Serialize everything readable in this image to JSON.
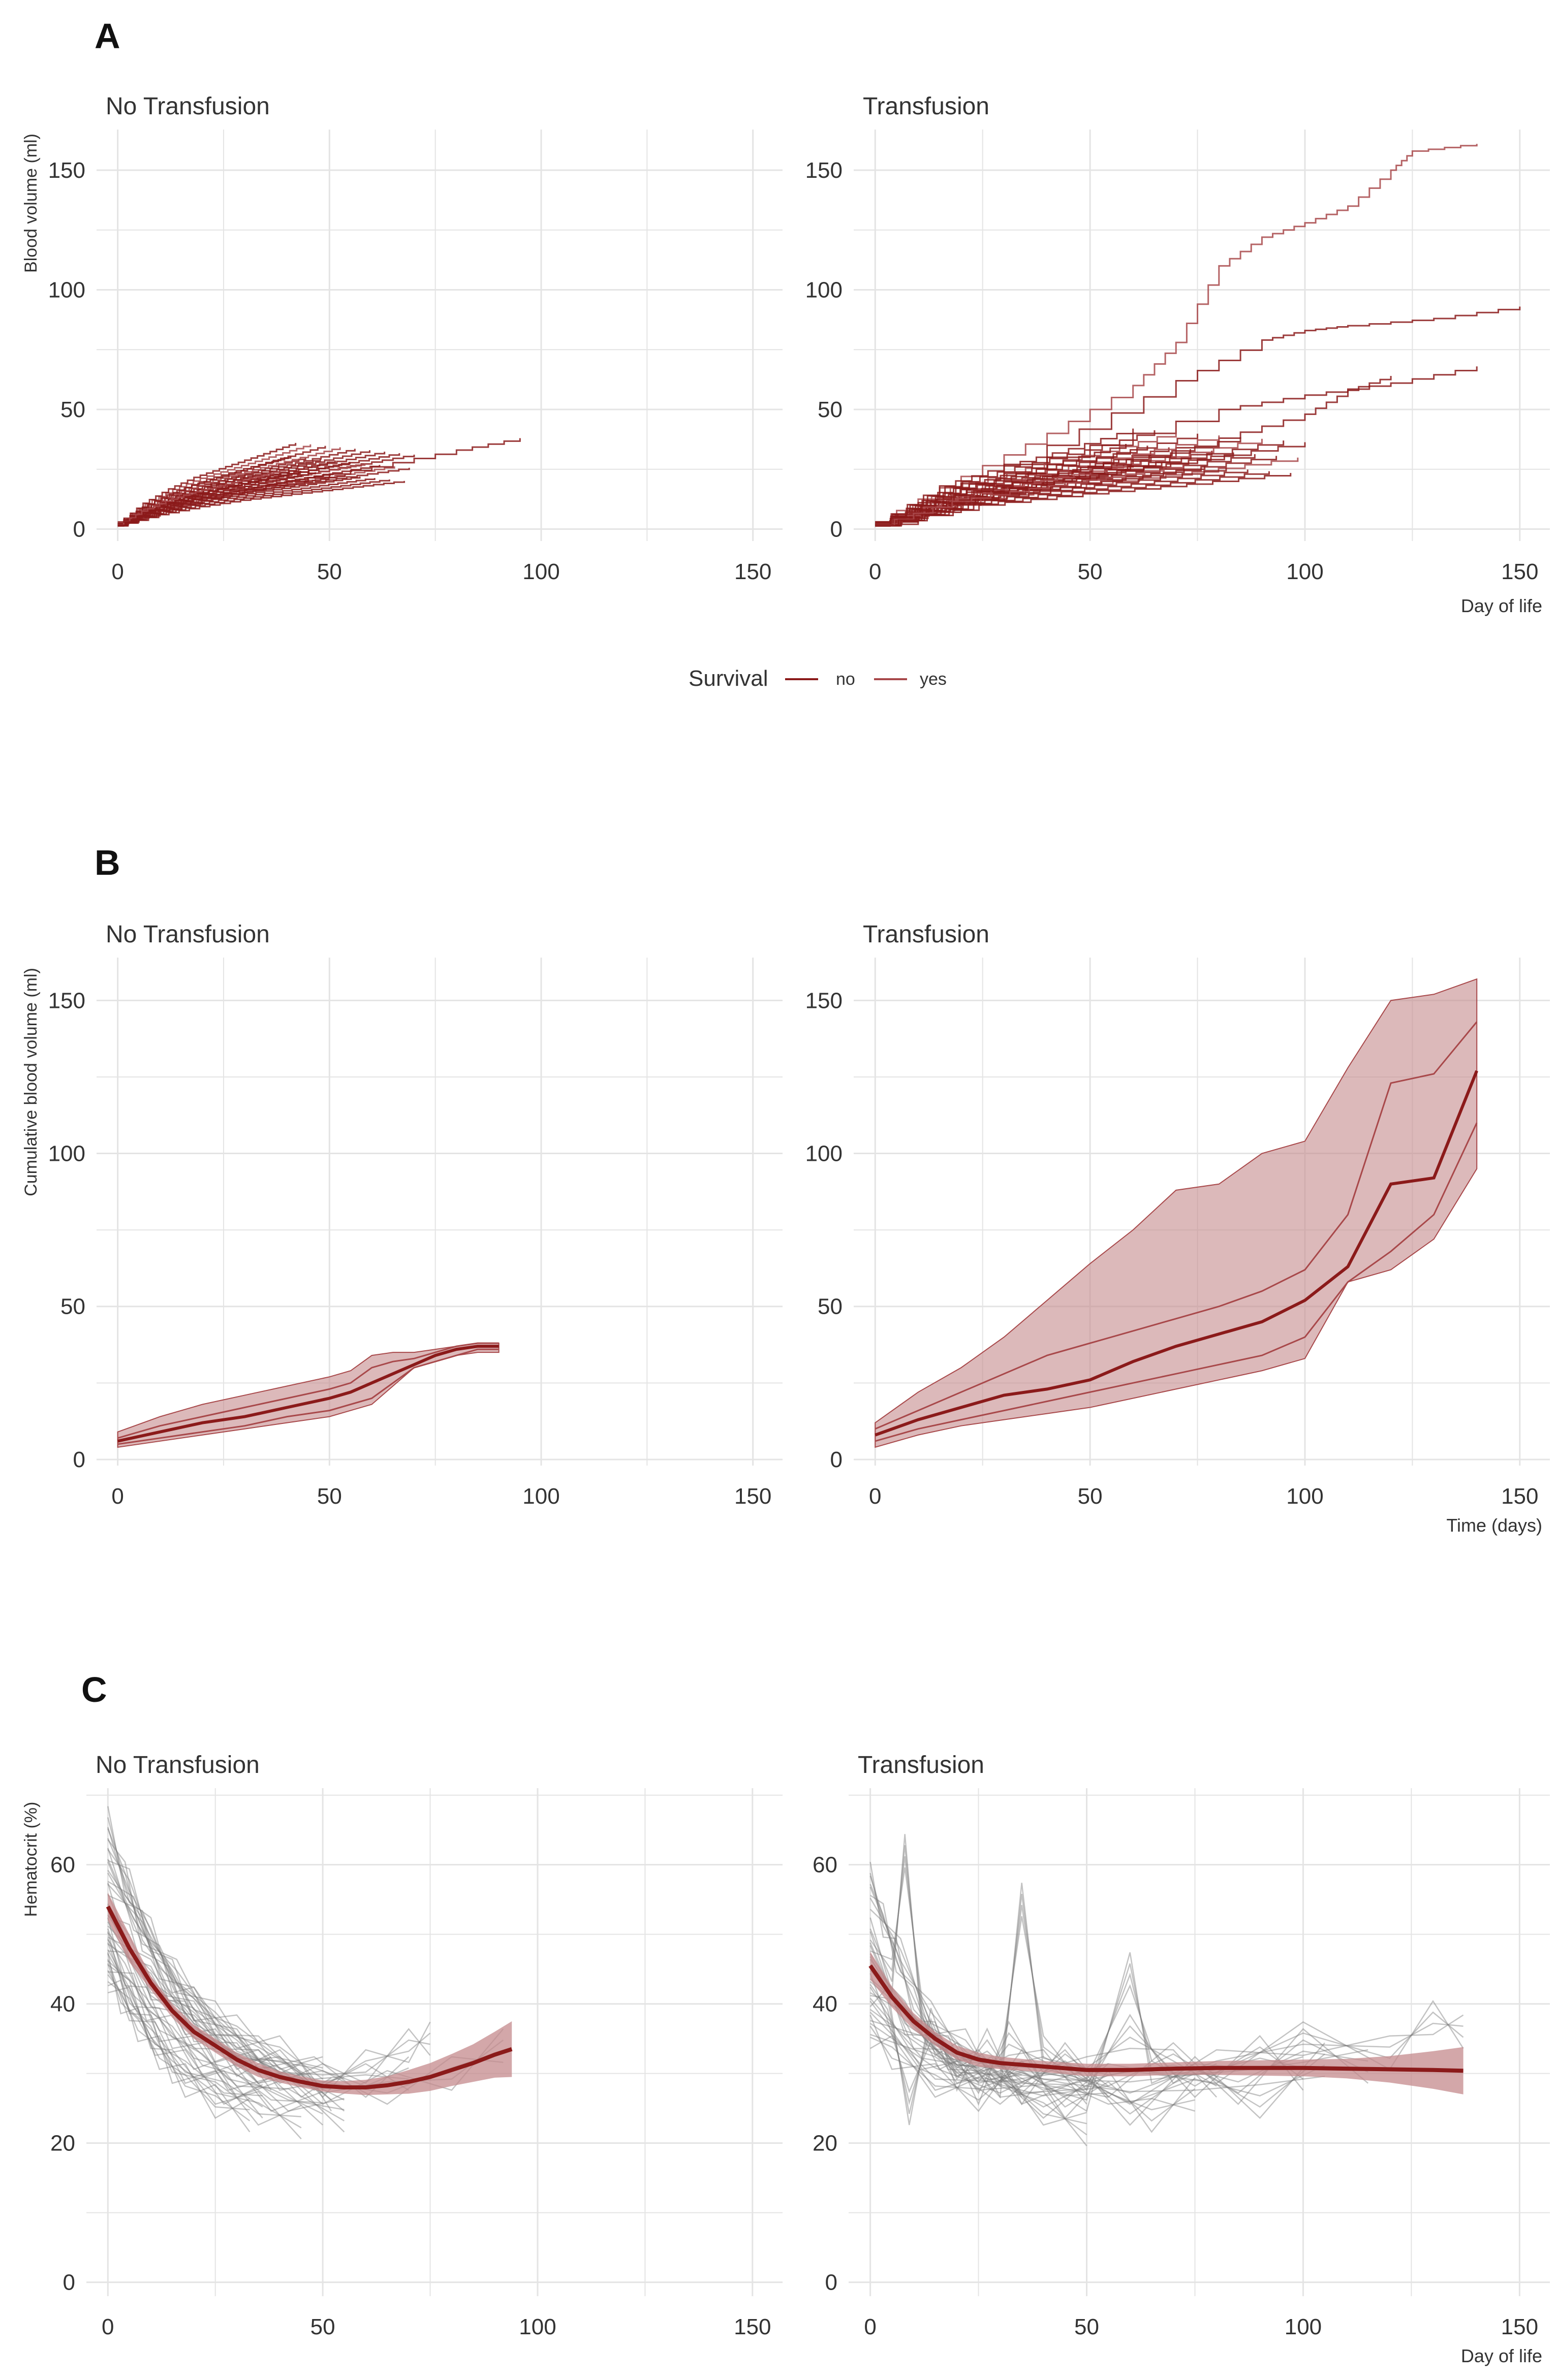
{
  "colors": {
    "line_dark_red": "#8b1a1a",
    "line_red": "#a8484a",
    "ribbon": "#c48a8c",
    "grey_line": "#7a7a7a",
    "grid": "#e4e4e4",
    "text": "#333333"
  },
  "panels": {
    "A": {
      "letter": "A",
      "ylabel": "Blood volume (ml)",
      "xlabel": "Day of life"
    },
    "B": {
      "letter": "B",
      "ylabel": "Cumulative blood volume (ml)",
      "xlabel": "Time (days)"
    },
    "C": {
      "letter": "C",
      "ylabel": "Hematocrit (%)",
      "xlabel": "Day of life"
    }
  },
  "legend": {
    "title": "Survival",
    "items": [
      "no",
      "yes"
    ]
  },
  "chart_data": [
    {
      "panel": "A",
      "type": "line",
      "title": "No Transfusion",
      "xlabel": "",
      "ylabel": "Blood volume (ml)",
      "xlim": [
        -5,
        157
      ],
      "ylim": [
        -5,
        167
      ],
      "xticks": [
        0,
        50,
        100,
        150
      ],
      "yticks": [
        0,
        50,
        100,
        150
      ],
      "series": [
        {
          "name": "patient trajectories (survival: yes)",
          "x": [
            0,
            10,
            20,
            30,
            40,
            50,
            60,
            70
          ],
          "y": [
            2,
            9,
            14,
            18,
            21,
            24,
            27,
            30
          ]
        },
        {
          "name": "longest trajectory",
          "x": [
            0,
            20,
            40,
            60,
            80,
            95
          ],
          "y": [
            3,
            13,
            20,
            26,
            33,
            38
          ]
        }
      ]
    },
    {
      "panel": "A",
      "type": "line",
      "title": "Transfusion",
      "xlabel": "Day of life",
      "ylabel": "",
      "xlim": [
        -5,
        157
      ],
      "ylim": [
        -5,
        167
      ],
      "xticks": [
        0,
        50,
        100,
        150
      ],
      "yticks": [
        0,
        50,
        100,
        150
      ],
      "series": [
        {
          "name": "max trajectory",
          "x": [
            0,
            20,
            40,
            60,
            70,
            80,
            90,
            100,
            110,
            120,
            125,
            140
          ],
          "y": [
            3,
            22,
            40,
            60,
            78,
            110,
            122,
            128,
            135,
            150,
            158,
            161
          ]
        },
        {
          "name": "trajectory 2",
          "x": [
            0,
            40,
            70,
            90,
            100,
            110,
            130,
            150
          ],
          "y": [
            3,
            35,
            62,
            79,
            83,
            85,
            88,
            93
          ]
        },
        {
          "name": "trajectory 3",
          "x": [
            0,
            40,
            80,
            100,
            120,
            140
          ],
          "y": [
            3,
            30,
            50,
            56,
            61,
            68
          ]
        },
        {
          "name": "trajectory 4",
          "x": [
            0,
            40,
            80,
            100,
            110,
            120
          ],
          "y": [
            2,
            22,
            38,
            48,
            58,
            64
          ]
        },
        {
          "name": "typical trajectory",
          "x": [
            0,
            25,
            50,
            75,
            100
          ],
          "y": [
            2,
            15,
            22,
            28,
            35
          ]
        }
      ]
    },
    {
      "panel": "B",
      "type": "area",
      "title": "No Transfusion",
      "xlabel": "",
      "ylabel": "Cumulative blood volume (ml)",
      "xlim": [
        -5,
        157
      ],
      "ylim": [
        -2,
        164
      ],
      "xticks": [
        0,
        50,
        100,
        150
      ],
      "yticks": [
        0,
        50,
        100,
        150
      ],
      "x": [
        0,
        10,
        20,
        30,
        40,
        50,
        55,
        60,
        65,
        70,
        75,
        80,
        85,
        90
      ],
      "median": [
        6,
        9,
        12,
        14,
        17,
        20,
        22,
        25,
        28,
        31,
        34,
        36,
        37,
        37
      ],
      "inner_upper": [
        7,
        11,
        14,
        17,
        20,
        23,
        25,
        30,
        32,
        33,
        35,
        37,
        38,
        38
      ],
      "inner_lower": [
        5,
        7,
        9,
        11,
        14,
        16,
        18,
        20,
        25,
        30,
        32,
        34,
        36,
        36
      ],
      "ribbon_upper": [
        9,
        14,
        18,
        21,
        24,
        27,
        29,
        34,
        35,
        35,
        36,
        37,
        38,
        38
      ],
      "ribbon_lower": [
        4,
        6,
        8,
        10,
        12,
        14,
        16,
        18,
        24,
        30,
        32,
        34,
        35,
        35
      ]
    },
    {
      "panel": "B",
      "type": "area",
      "title": "Transfusion",
      "xlabel": "Time (days)",
      "ylabel": "",
      "xlim": [
        -5,
        157
      ],
      "ylim": [
        -2,
        164
      ],
      "xticks": [
        0,
        50,
        100,
        150
      ],
      "yticks": [
        0,
        50,
        100,
        150
      ],
      "x": [
        0,
        10,
        20,
        30,
        40,
        50,
        60,
        70,
        80,
        90,
        100,
        110,
        120,
        130,
        140
      ],
      "median": [
        8,
        13,
        17,
        21,
        23,
        26,
        32,
        37,
        41,
        45,
        52,
        63,
        90,
        92,
        127
      ],
      "inner_upper": [
        10,
        16,
        22,
        28,
        34,
        38,
        42,
        46,
        50,
        55,
        62,
        80,
        123,
        126,
        143
      ],
      "inner_lower": [
        6,
        10,
        13,
        16,
        19,
        22,
        25,
        28,
        31,
        34,
        40,
        58,
        68,
        80,
        110
      ],
      "ribbon_upper": [
        12,
        22,
        30,
        40,
        52,
        64,
        75,
        88,
        90,
        100,
        104,
        128,
        150,
        152,
        157
      ],
      "ribbon_lower": [
        4,
        8,
        11,
        13,
        15,
        17,
        20,
        23,
        26,
        29,
        33,
        58,
        62,
        72,
        95
      ]
    },
    {
      "panel": "C",
      "type": "line",
      "title": "No Transfusion",
      "xlabel": "",
      "ylabel": "Hematocrit (%)",
      "xlim": [
        -5,
        157
      ],
      "ylim": [
        -2,
        71
      ],
      "xticks": [
        0,
        50,
        100,
        150
      ],
      "yticks": [
        0,
        20,
        40,
        60
      ],
      "fit": {
        "x": [
          0,
          5,
          10,
          15,
          20,
          25,
          30,
          35,
          40,
          45,
          50,
          55,
          60,
          65,
          70,
          75,
          80,
          85,
          90,
          94
        ],
        "y": [
          54,
          48,
          43,
          39,
          36,
          34,
          32,
          30.5,
          29.5,
          28.8,
          28.2,
          28,
          28,
          28.3,
          28.8,
          29.5,
          30.5,
          31.5,
          32.7,
          33.5
        ]
      },
      "ci_upper": [
        56,
        50,
        44,
        40,
        37,
        35,
        33,
        31.5,
        30.3,
        29.6,
        29.0,
        28.9,
        29.1,
        29.6,
        30.5,
        31.5,
        32.8,
        34.2,
        36,
        37.5
      ],
      "ci_lower": [
        52,
        46,
        42,
        38,
        35,
        33,
        31,
        29.5,
        28.7,
        28.0,
        27.4,
        27.1,
        26.9,
        27.0,
        27.1,
        27.5,
        28.2,
        28.8,
        29.4,
        29.5
      ],
      "individual_trajectories": [
        {
          "x": [
            0,
            5,
            10,
            15,
            20,
            30,
            40,
            50
          ],
          "y": [
            63,
            57,
            50,
            44,
            40,
            36,
            33,
            30
          ]
        },
        {
          "x": [
            0,
            6,
            12,
            20,
            30,
            40,
            55
          ],
          "y": [
            60,
            53,
            46,
            40,
            34,
            30,
            27
          ]
        },
        {
          "x": [
            0,
            5,
            10,
            18,
            25,
            35,
            45,
            52
          ],
          "y": [
            55,
            49,
            43,
            38,
            34,
            31,
            29,
            27
          ]
        },
        {
          "x": [
            0,
            4,
            9,
            15,
            22,
            30,
            42,
            55
          ],
          "y": [
            50,
            45,
            40,
            36,
            32,
            29,
            27,
            24
          ]
        },
        {
          "x": [
            0,
            6,
            12,
            20,
            28,
            38,
            50
          ],
          "y": [
            47,
            42,
            37,
            33,
            30,
            27,
            25
          ]
        },
        {
          "x": [
            0,
            5,
            11,
            18,
            27,
            36
          ],
          "y": [
            44,
            40,
            35,
            31,
            28,
            26
          ]
        },
        {
          "x": [
            0,
            8,
            16,
            25,
            35,
            48,
            60,
            70
          ],
          "y": [
            58,
            51,
            44,
            38,
            33,
            30,
            29,
            30
          ]
        },
        {
          "x": [
            0,
            10,
            20,
            30,
            40,
            50,
            60,
            70,
            75
          ],
          "y": [
            52,
            44,
            38,
            33,
            31,
            29,
            31,
            34,
            35
          ]
        },
        {
          "x": [
            0,
            5,
            10,
            15,
            25,
            35,
            45
          ],
          "y": [
            48,
            41,
            36,
            31,
            28,
            25,
            23
          ]
        },
        {
          "x": [
            0,
            4,
            8,
            14,
            20,
            30,
            38
          ],
          "y": [
            66,
            58,
            50,
            43,
            37,
            32,
            30
          ]
        },
        {
          "x": [
            0,
            10,
            20,
            35,
            50,
            65,
            80,
            92
          ],
          "y": [
            51,
            42,
            36,
            31,
            28,
            28,
            30,
            34
          ]
        },
        {
          "x": [
            0,
            3,
            7,
            12,
            18,
            25,
            33
          ],
          "y": [
            45,
            41,
            37,
            33,
            29,
            26,
            24
          ]
        }
      ]
    },
    {
      "panel": "C",
      "type": "line",
      "title": "Transfusion",
      "xlabel": "Day of life",
      "ylabel": "",
      "xlim": [
        -5,
        157
      ],
      "ylim": [
        -2,
        71
      ],
      "xticks": [
        0,
        50,
        100,
        150
      ],
      "yticks": [
        0,
        20,
        40,
        60
      ],
      "fit": {
        "x": [
          0,
          5,
          10,
          15,
          20,
          25,
          30,
          40,
          50,
          60,
          70,
          80,
          90,
          100,
          110,
          120,
          130,
          137
        ],
        "y": [
          45.5,
          41,
          37.5,
          35,
          33,
          32,
          31.5,
          31,
          30.5,
          30.5,
          30.7,
          30.8,
          30.8,
          30.8,
          30.7,
          30.6,
          30.5,
          30.4
        ]
      },
      "ci_upper": [
        47.5,
        42.5,
        38.7,
        36,
        34,
        33,
        32.4,
        31.8,
        31.4,
        31.4,
        31.6,
        31.8,
        31.9,
        32.0,
        32.1,
        32.5,
        33.2,
        33.8
      ],
      "ci_lower": [
        43.5,
        39.5,
        36.3,
        34,
        32,
        31,
        30.6,
        30.2,
        29.6,
        29.6,
        29.8,
        29.8,
        29.7,
        29.6,
        29.3,
        28.7,
        27.8,
        27.0
      ],
      "individual_trajectories": [
        {
          "x": [
            0,
            3,
            6,
            10,
            15,
            20,
            28,
            35
          ],
          "y": [
            58,
            52,
            47,
            40,
            35,
            32,
            30,
            29
          ]
        },
        {
          "x": [
            0,
            5,
            8,
            12,
            18,
            25,
            32,
            40,
            50
          ],
          "y": [
            50,
            44,
            62,
            38,
            33,
            28,
            35,
            31,
            28
          ]
        },
        {
          "x": [
            0,
            4,
            9,
            14,
            20,
            27,
            35,
            45,
            55
          ],
          "y": [
            42,
            40,
            25,
            37,
            30,
            34,
            28,
            32,
            29
          ]
        },
        {
          "x": [
            0,
            10,
            20,
            30,
            35,
            40,
            50,
            60,
            70,
            80
          ],
          "y": [
            46,
            36,
            31,
            29,
            55,
            33,
            30,
            36,
            31,
            29
          ]
        },
        {
          "x": [
            0,
            8,
            16,
            25,
            35,
            50,
            60,
            65,
            75,
            90,
            100
          ],
          "y": [
            48,
            38,
            33,
            31,
            28,
            27,
            45,
            31,
            29,
            33,
            30
          ]
        },
        {
          "x": [
            0,
            12,
            25,
            40,
            55,
            70,
            85,
            100,
            115
          ],
          "y": [
            40,
            33,
            30,
            26,
            29,
            32,
            28,
            34,
            31
          ]
        },
        {
          "x": [
            0,
            5,
            15,
            25,
            35,
            45,
            55,
            65,
            75
          ],
          "y": [
            36,
            33,
            29,
            27,
            31,
            26,
            28,
            24,
            27
          ]
        },
        {
          "x": [
            0,
            20,
            40,
            60,
            80,
            100,
            120,
            130,
            137
          ],
          "y": [
            44,
            32,
            30,
            28,
            31,
            35,
            33,
            38,
            36
          ]
        },
        {
          "x": [
            0,
            7,
            14,
            22,
            30,
            40,
            50
          ],
          "y": [
            56,
            47,
            38,
            34,
            29,
            25,
            22
          ]
        },
        {
          "x": [
            0,
            15,
            30,
            45,
            60,
            75,
            90,
            105
          ],
          "y": [
            38,
            30,
            28,
            31,
            25,
            30,
            26,
            32
          ]
        }
      ]
    }
  ]
}
